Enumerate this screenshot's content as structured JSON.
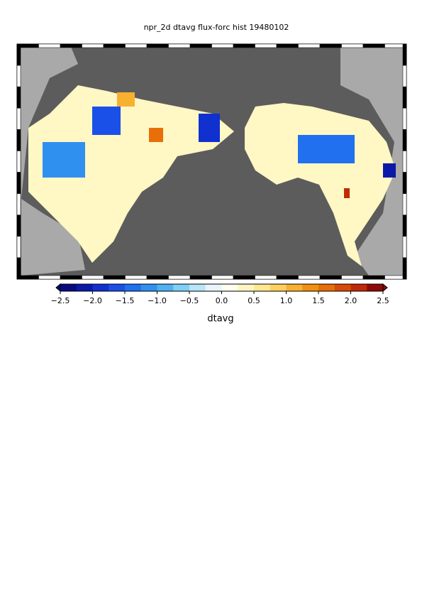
{
  "title": "npr_2d dtavg flux-forc hist 19480102",
  "colorbar": {
    "label": "dtavg",
    "range": [
      -2.5,
      2.5
    ],
    "ticks": [
      {
        "value": -2.5,
        "label": "−2.5"
      },
      {
        "value": -2.0,
        "label": "−2.0"
      },
      {
        "value": -1.5,
        "label": "−1.5"
      },
      {
        "value": -1.0,
        "label": "−1.0"
      },
      {
        "value": -0.5,
        "label": "−0.5"
      },
      {
        "value": 0.0,
        "label": "0.0"
      },
      0.5,
      {
        "value": 1.0,
        "label": "1.0"
      },
      1.5,
      {
        "value": 2.0,
        "label": "2.0"
      },
      2.5
    ],
    "colors": [
      "#0a0a80",
      "#0a1aa8",
      "#1030d0",
      "#1a50e8",
      "#2070f0",
      "#3090f0",
      "#50b0f0",
      "#80cff4",
      "#b8e6f8",
      "#e8f6fb",
      "#fffff0",
      "#fff6c0",
      "#ffe890",
      "#ffd060",
      "#f8b030",
      "#f09010",
      "#e86e08",
      "#d84a08",
      "#c02a08",
      "#900808"
    ]
  }
}
